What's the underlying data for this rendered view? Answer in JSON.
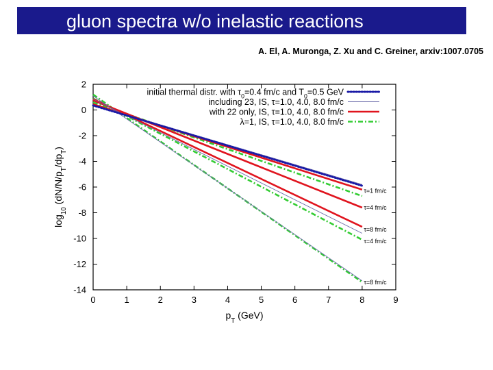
{
  "slide": {
    "title": "gluon spectra w/o inelastic reactions",
    "citation": "A. El, A. Muronga, Z. Xu and C. Greiner, arxiv:1007.0705"
  },
  "colors": {
    "title_bar": "#1a1a8c",
    "title_text": "#ffffff",
    "initial": "#1a1aa6",
    "including23": "#6a6aa8",
    "only22": "#e0141e",
    "lambda1": "#33cc33"
  },
  "chart_data": {
    "type": "line",
    "xlabel": "p_T (GeV)",
    "ylabel": "log_10 (dN/N/p_T/dp_T)",
    "xlim": [
      0,
      9
    ],
    "ylim": [
      -14,
      2
    ],
    "x_ticks": [
      "0",
      "1",
      "2",
      "3",
      "4",
      "5",
      "6",
      "7",
      "8",
      "9"
    ],
    "y_ticks": [
      "2",
      "0",
      "-2",
      "-4",
      "-6",
      "-8",
      "-10",
      "-12",
      "-14"
    ],
    "grid": false,
    "legend_position": "top-right",
    "legend": [
      {
        "id": "initial",
        "label": "initial thermal distr. with τ0=0.4 fm/c and T0=0.5 GeV"
      },
      {
        "id": "including23",
        "label": "including 23, IS, τ=1.0, 4.0, 8.0 fm/c"
      },
      {
        "id": "only22",
        "label": "with 22 only, IS, τ=1.0, 4.0, 8.0 fm/c"
      },
      {
        "id": "lambda1",
        "label": "λ=1, IS, τ=1.0, 4.0, 8.0 fm/c"
      }
    ],
    "series": [
      {
        "id": "initial",
        "style": "blue-dotted",
        "x": [
          0,
          8
        ],
        "y": [
          0.35,
          -5.9
        ]
      },
      {
        "id": "including23",
        "style": "thin",
        "x": [
          0,
          8
        ],
        "y": [
          0.4,
          -5.8
        ]
      },
      {
        "id": "including23",
        "style": "thin",
        "x": [
          0,
          8
        ],
        "y": [
          0.85,
          -9.6
        ]
      },
      {
        "id": "including23",
        "style": "thin",
        "x": [
          0,
          8
        ],
        "y": [
          1.1,
          -13.3
        ]
      },
      {
        "id": "only22",
        "style": "red-thick",
        "x": [
          0,
          8
        ],
        "y": [
          0.45,
          -6.2
        ]
      },
      {
        "id": "only22",
        "style": "red-thick",
        "x": [
          0,
          8
        ],
        "y": [
          0.75,
          -7.6
        ]
      },
      {
        "id": "only22",
        "style": "red-thick",
        "x": [
          0,
          8
        ],
        "y": [
          0.85,
          -9.1
        ]
      },
      {
        "id": "lambda1",
        "style": "green-dashdot",
        "x": [
          0,
          8
        ],
        "y": [
          0.6,
          -6.7
        ]
      },
      {
        "id": "lambda1",
        "style": "green-dashdot",
        "x": [
          0,
          8
        ],
        "y": [
          0.9,
          -10.1
        ]
      },
      {
        "id": "lambda1",
        "style": "green-dashdot",
        "x": [
          0,
          8
        ],
        "y": [
          1.2,
          -13.4
        ]
      }
    ],
    "annotations": [
      {
        "text": "τ=1 fm/c",
        "x": 8.05,
        "y": -6.3
      },
      {
        "text": "τ=4 fm/c",
        "x": 8.05,
        "y": -7.6
      },
      {
        "text": "τ=8 fm/c",
        "x": 8.05,
        "y": -9.3
      },
      {
        "text": "τ=4 fm/c",
        "x": 8.05,
        "y": -10.2
      },
      {
        "text": "τ=8 fm/c",
        "x": 8.05,
        "y": -13.4
      }
    ]
  }
}
